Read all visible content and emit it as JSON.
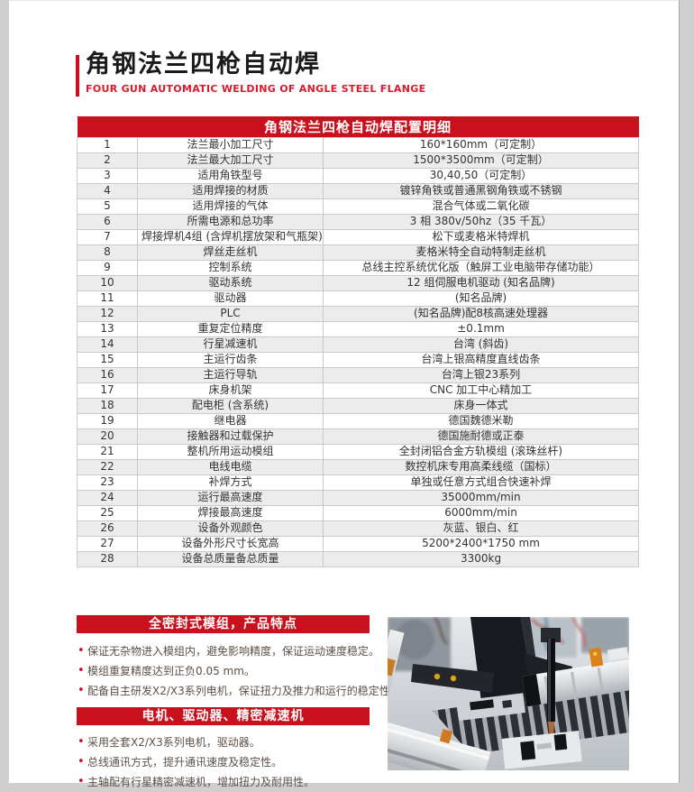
{
  "header": {
    "title": "角钢法兰四枪自动焊",
    "subtitle": "FOUR GUN AUTOMATIC WELDING OF ANGLE STEEL FLANGE"
  },
  "table": {
    "title": "角钢法兰四枪自动焊配置明细",
    "rows": [
      {
        "no": "1",
        "name": "法兰最小加工尺寸",
        "value": "160*160mm（可定制）"
      },
      {
        "no": "2",
        "name": "法兰最大加工尺寸",
        "value": "1500*3500mm（可定制）"
      },
      {
        "no": "3",
        "name": "适用角铁型号",
        "value": "30,40,50（可定制）"
      },
      {
        "no": "4",
        "name": "适用焊接的材质",
        "value": "镀锌角铁或普通黑钢角铁或不锈钢"
      },
      {
        "no": "5",
        "name": "适用焊接的气体",
        "value": "混合气体或二氧化碳"
      },
      {
        "no": "6",
        "name": "所需电源和总功率",
        "value": "3 相 380v/50hz（35 千瓦）"
      },
      {
        "no": "7",
        "name": "焊接焊机4组 (含焊机摆放架和气瓶架)",
        "value": "松下或麦格米特焊机"
      },
      {
        "no": "8",
        "name": "焊丝走丝机",
        "value": "麦格米特全自动特制走丝机"
      },
      {
        "no": "9",
        "name": "控制系统",
        "value": "总线主控系统优化版（触屏工业电脑带存储功能）"
      },
      {
        "no": "10",
        "name": "驱动系统",
        "value": "12 组伺服电机驱动 (知名品牌)"
      },
      {
        "no": "11",
        "name": "驱动器",
        "value": "(知名品牌)"
      },
      {
        "no": "12",
        "name": "PLC",
        "value": "(知名品牌)配8核高速处理器"
      },
      {
        "no": "13",
        "name": "重复定位精度",
        "value": "±0.1mm"
      },
      {
        "no": "14",
        "name": "行星减速机",
        "value": "台湾 (斜齿)"
      },
      {
        "no": "15",
        "name": "主运行齿条",
        "value": "台湾上银高精度直线齿条"
      },
      {
        "no": "16",
        "name": "主运行导轨",
        "value": "台湾上银23系列"
      },
      {
        "no": "17",
        "name": "床身机架",
        "value": "CNC 加工中心精加工"
      },
      {
        "no": "18",
        "name": "配电柜 (含系统)",
        "value": "床身一体式"
      },
      {
        "no": "19",
        "name": "继电器",
        "value": "德国魏德米勒"
      },
      {
        "no": "20",
        "name": "接触器和过载保护",
        "value": "德国施耐德或正泰"
      },
      {
        "no": "21",
        "name": "整机所用运动模组",
        "value": "全封闭铝合金方轨模组 (滚珠丝杆)"
      },
      {
        "no": "22",
        "name": "电线电缆",
        "value": "数控机床专用高柔线缆（国标）"
      },
      {
        "no": "23",
        "name": "补焊方式",
        "value": "单独或任意方式组合快速补焊"
      },
      {
        "no": "24",
        "name": "运行最高速度",
        "value": "35000mm/min"
      },
      {
        "no": "25",
        "name": "焊接最高速度",
        "value": "6000mm/min"
      },
      {
        "no": "26",
        "name": "设备外观颜色",
        "value": "灰蓝、银白、红"
      },
      {
        "no": "27",
        "name": "设备外形尺寸长宽高",
        "value": "5200*2400*1750 mm"
      },
      {
        "no": "28",
        "name": "设备总质量备总质量",
        "value": "3300kg"
      }
    ]
  },
  "sections": [
    {
      "heading": "全密封式模组，产品特点",
      "bullets": [
        {
          "text": "保证无杂物进入模组内，避免影响精度，保证运动速度稳定。"
        },
        {
          "text": "模组重复精度达到正负0.05 mm。"
        },
        {
          "text": "配备自主研发X2/X3系列电机，保证扭力及推力和运行的稳定性。"
        }
      ]
    },
    {
      "heading": "电机、驱动器、精密减速机",
      "bullets": [
        {
          "text": "采用全套X2/X3系列电机，驱动器。"
        },
        {
          "text": "总线通讯方式，提升通讯速度及稳定性。"
        },
        {
          "text": "主轴配有行星精密减速机，增加扭力及耐用性。"
        }
      ]
    }
  ],
  "colors": {
    "brand_red": "#c9111d",
    "subtitle_red": "#d91a2d",
    "row_stripe": "#ececec",
    "cell_border": "#c9c9c9",
    "table_text": "#333333",
    "bullet_text": "#5d5048"
  }
}
